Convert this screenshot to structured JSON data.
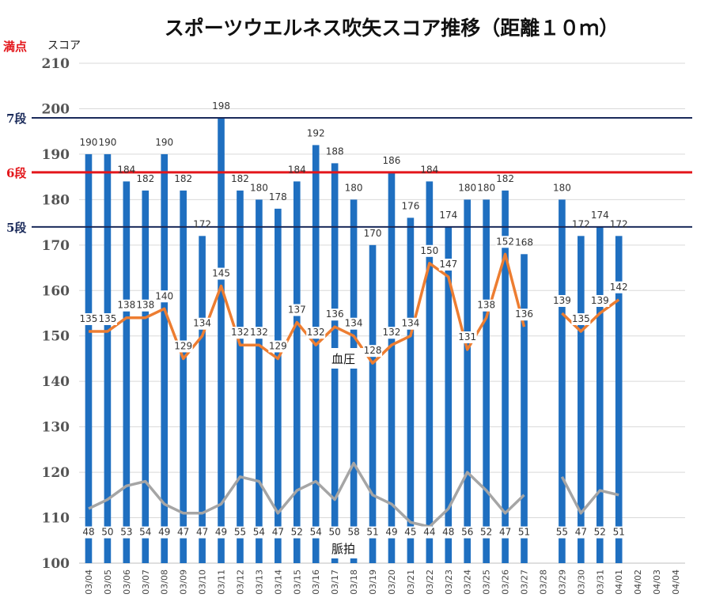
{
  "chart_data": {
    "type": "bar",
    "title": "スポーツウエルネス吹矢スコア推移（距離１０ｍ）",
    "ylabel": "スコア",
    "max_label": "満点",
    "ylim": [
      100,
      210
    ],
    "yticks": [
      100,
      110,
      120,
      130,
      140,
      150,
      160,
      170,
      180,
      190,
      200,
      210
    ],
    "grid": true,
    "categories": [
      "03/04",
      "03/05",
      "03/06",
      "03/07",
      "03/08",
      "03/09",
      "03/10",
      "03/11",
      "03/12",
      "03/13",
      "03/14",
      "03/15",
      "03/16",
      "03/17",
      "03/18",
      "03/19",
      "03/20",
      "03/21",
      "03/22",
      "03/23",
      "03/24",
      "03/25",
      "03/26",
      "03/27",
      "03/28",
      "03/29",
      "03/30",
      "03/31",
      "04/01",
      "04/02",
      "04/03",
      "04/04"
    ],
    "series": [
      {
        "type": "bar",
        "color": "#1f6fc0",
        "values": [
          190,
          190,
          184,
          182,
          190,
          182,
          172,
          198,
          182,
          180,
          178,
          184,
          192,
          188,
          180,
          170,
          186,
          176,
          184,
          174,
          180,
          180,
          182,
          168,
          null,
          180,
          172,
          174,
          172,
          null,
          null,
          null
        ]
      },
      {
        "type": "line",
        "name": "血圧",
        "color": "#ed7d31",
        "values": [
          135,
          135,
          138,
          138,
          140,
          129,
          134,
          145,
          132,
          132,
          129,
          137,
          132,
          136,
          134,
          128,
          132,
          134,
          150,
          147,
          131,
          138,
          152,
          136,
          null,
          139,
          135,
          139,
          142,
          null,
          null,
          null
        ]
      },
      {
        "type": "line",
        "name": "脈拍",
        "color": "#a5a5a5",
        "values": [
          48,
          50,
          53,
          54,
          49,
          47,
          47,
          49,
          55,
          54,
          47,
          52,
          54,
          50,
          58,
          51,
          49,
          45,
          44,
          48,
          56,
          52,
          47,
          51,
          null,
          55,
          47,
          52,
          51,
          null,
          null,
          null
        ]
      }
    ],
    "reference_lines": [
      {
        "label": "7段",
        "value": 198,
        "color": "#1a2a5a"
      },
      {
        "label": "6段",
        "value": 186,
        "color": "#e3161b"
      },
      {
        "label": "5段",
        "value": 174,
        "color": "#1a2a5a"
      }
    ]
  }
}
